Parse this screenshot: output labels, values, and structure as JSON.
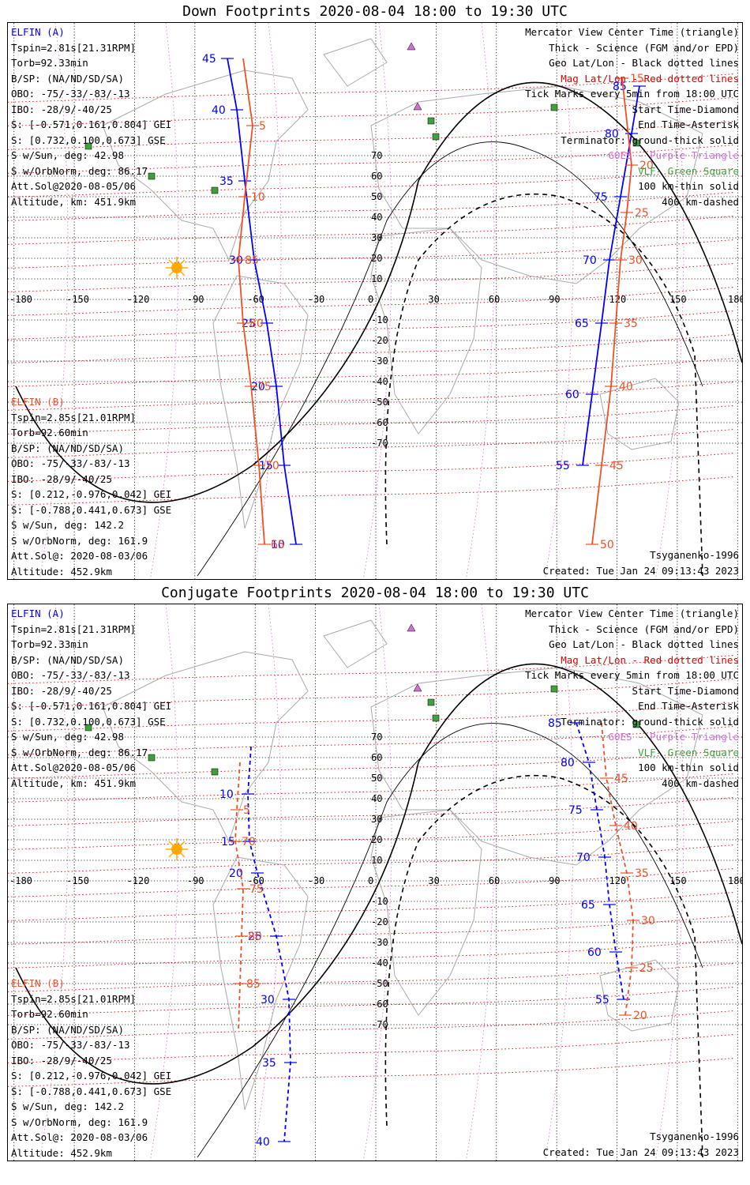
{
  "panels": [
    {
      "title": "Down Footprints 2020-08-04 18:00 to 19:30 UTC",
      "sat_a_name": "ELFIN (A)",
      "sat_a_lines": [
        "Tspin=2.81s[21.31RPM]",
        "Torb=92.33min",
        "B/SP: (NA/ND/SD/SA)",
        "OBO: -75/-33/-83/-13",
        "IBO: -28/9/-40/25",
        "S: [-0.571,0.161,0.804] GEI",
        "S: [0.732,0.100,0.673] GSE",
        "S w/Sun, deg: 42.98",
        "S w/OrbNorm, deg: 86.17",
        "Att.Sol@2020-08-05/06",
        "Altitude, km: 451.9km"
      ],
      "sat_b_name": "ELFIN (B)",
      "sat_b_lines": [
        "Tspin=2.85s[21.01RPM]",
        "Torb=92.60min",
        "B/SP: (NA/ND/SD/SA)",
        "OBO: -75/-33/-83/-13",
        "IBO: -28/9/-40/25",
        "S: [0.212,-0.976,0.042] GEI",
        "S: [-0.788,0.441,0.673] GSE",
        "S w/Sun, deg: 142.2",
        "S w/OrbNorm, deg: 161.9",
        "Att.Sol@: 2020-08-03/06",
        "Altitude: 452.9km"
      ],
      "legend": [
        "Mercator View Center Time (triangle)",
        "Thick - Science (FGM and/or EPD)",
        "Geo Lat/Lon - Black dotted lines",
        "Mag Lat/Lon - Red dotted lines",
        "Tick Marks every 5min from 18:00 UTC",
        "Start Time-Diamond",
        "End Time-Asterisk",
        "Terminator: ground-thick solid",
        "GOES - Purple Triangle",
        "VLF- Green Square",
        "100 km-thin solid",
        "400 km-dashed"
      ],
      "model": "Tsyganenko-1996",
      "created": "Created: Tue Jan 24 09:13:43 2023",
      "track_a_ticks": [
        "45",
        "40",
        "35",
        "30",
        "25",
        "20",
        "15",
        "10",
        "55",
        "60",
        "65",
        "70",
        "75",
        "80",
        "85"
      ],
      "track_b_ticks": [
        "5",
        "10",
        "85",
        "80",
        "75",
        "70",
        "65",
        "15",
        "20",
        "25",
        "30",
        "35",
        "40",
        "45",
        "50"
      ]
    },
    {
      "title": "Conjugate Footprints 2020-08-04 18:00 to 19:30 UTC",
      "sat_a_name": "ELFIN (A)",
      "sat_a_lines": [
        "Tspin=2.81s[21.31RPM]",
        "Torb=92.33min",
        "B/SP: (NA/ND/SD/SA)",
        "OBO: -75/-33/-83/-13",
        "IBO: -28/9/-40/25",
        "S: [-0.571,0.161,0.804] GEI",
        "S: [0.732,0.100,0.673] GSE",
        "S w/Sun, deg: 42.98",
        "S w/OrbNorm, deg: 86.17",
        "Att.Sol@2020-08-05/06",
        "Altitude, km: 451.9km"
      ],
      "sat_b_name": "ELFIN (B)",
      "sat_b_lines": [
        "Tspin=2.85s[21.01RPM]",
        "Torb=92.60min",
        "B/SP: (NA/ND/SD/SA)",
        "OBO: -75/-33/-83/-13",
        "IBO: -28/9/-40/25",
        "S: [0.212,-0.976,0.042] GEI",
        "S: [-0.788,0.441,0.673] GSE",
        "S w/Sun, deg: 142.2",
        "S w/OrbNorm, deg: 161.9",
        "Att.Sol@: 2020-08-03/06",
        "Altitude: 452.9km"
      ],
      "legend": [
        "Mercator View Center Time (triangle)",
        "Thick - Science (FGM and/or EPD)",
        "Geo Lat/Lon - Black dotted lines",
        "Mag Lat/Lon - Red dotted lines",
        "Tick Marks every 5min from 18:00 UTC",
        "Start Time-Diamond",
        "End Time-Asterisk",
        "Terminator: ground-thick solid",
        "GOES - Purple Triangle",
        "VLF- Green Square",
        "100 km-thin solid",
        "400 km-dashed"
      ],
      "model": "Tsyganenko-1996",
      "created": "Created: Tue Jan 24 09:13:43 2023",
      "track_a_ticks": [
        "10",
        "15",
        "20",
        "25",
        "30",
        "35",
        "40",
        "85",
        "80",
        "75",
        "70",
        "65",
        "60",
        "55"
      ],
      "track_b_ticks": [
        "5",
        "70",
        "75",
        "80",
        "85",
        "45",
        "40",
        "35",
        "30",
        "25",
        "20"
      ]
    }
  ],
  "lon_labels": [
    "-180",
    "-150",
    "-120",
    "-90",
    "-60",
    "-30",
    "0",
    "30",
    "60",
    "90",
    "120",
    "150",
    "180"
  ],
  "lat_labels": [
    "70",
    "60",
    "50",
    "40",
    "30",
    "20",
    "10",
    "-10",
    "-20",
    "-30",
    "-40",
    "-50",
    "-60",
    "-70"
  ],
  "colors": {
    "sat_a": "#0000ff",
    "sat_b": "#f05028",
    "mag_grid": "#e00000",
    "geo_grid": "#000000",
    "goes": "#d070d0",
    "vlf": "#40a040",
    "land": "#aaaaaa",
    "sun": "#ffaa00"
  }
}
